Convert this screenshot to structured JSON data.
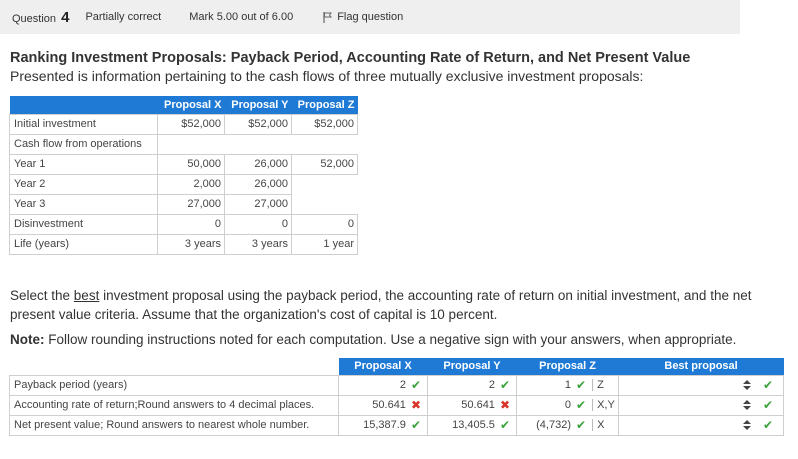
{
  "header": {
    "question_label": "Question",
    "question_number": "4",
    "state": "Partially correct",
    "mark": "Mark 5.00 out of 6.00",
    "flag_label": "Flag question"
  },
  "content": {
    "title": "Ranking Investment Proposals: Payback Period, Accounting Rate of Return, and Net Present Value",
    "intro": "Presented is information pertaining to the cash flows of three mutually exclusive investment proposals:"
  },
  "info_table": {
    "headers": [
      "Proposal X",
      "Proposal Y",
      "Proposal Z"
    ],
    "rows": [
      {
        "label": "Initial investment",
        "values": [
          "$52,000",
          "$52,000",
          "$52,000"
        ]
      },
      {
        "label": "Cash flow from operations",
        "values": [
          "",
          "",
          ""
        ]
      },
      {
        "label": "Year 1",
        "values": [
          "50,000",
          "26,000",
          "52,000"
        ]
      },
      {
        "label": "Year 2",
        "values": [
          "2,000",
          "26,000",
          ""
        ]
      },
      {
        "label": "Year 3",
        "values": [
          "27,000",
          "27,000",
          ""
        ]
      },
      {
        "label": "Disinvestment",
        "values": [
          "0",
          "0",
          "0"
        ]
      },
      {
        "label": "Life (years)",
        "values": [
          "3 years",
          "3 years",
          "1 year"
        ]
      }
    ]
  },
  "instructions": {
    "para_before": "Select the ",
    "para_underlined": "best",
    "para_after": " investment proposal  using the payback period, the accounting rate of return on initial investment, and the net present value criteria. Assume that the organization's cost of capital is 10 percent.",
    "note_label": "Note:",
    "note_text": " Follow rounding instructions noted for each computation.  Use a negative sign with your answers, when appropriate."
  },
  "answer_table": {
    "headers": [
      "Proposal X",
      "Proposal Y",
      "Proposal Z",
      "Best proposal"
    ],
    "rows": [
      {
        "label": "Payback period (years)",
        "x": "2",
        "x_mark": "✔",
        "y": "2",
        "y_mark": "✔",
        "z": "1",
        "z_mark": "✔",
        "z_text": "Z",
        "best_mark": "✔"
      },
      {
        "label": "Accounting rate of return;Round answers to 4 decimal places.",
        "x": "50.641",
        "x_mark": "✖",
        "y": "50.641",
        "y_mark": "✖",
        "z": "0",
        "z_mark": "✔",
        "z_text": "X,Y",
        "best_mark": "✔"
      },
      {
        "label": "Net present value; Round answers to nearest whole number.",
        "x": "15,387.9",
        "x_mark": "✔",
        "y": "13,405.5",
        "y_mark": "✔",
        "z": "(4,732)",
        "z_mark": "✔",
        "z_text": "X",
        "best_mark": "✔"
      }
    ]
  },
  "colors": {
    "header_blue": "#1f7ad6",
    "correct": "#3aa33a",
    "incorrect": "#d9342b"
  },
  "icons": {
    "flag": "flag-icon",
    "check": "check-icon",
    "cross": "cross-icon",
    "select": "updown-arrows-icon"
  }
}
